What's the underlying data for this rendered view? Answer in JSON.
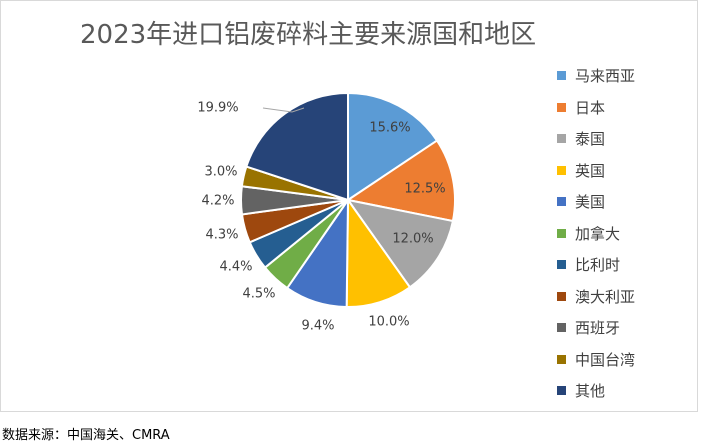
{
  "chart_data": {
    "type": "pie",
    "title": "2023年进口铝废碎料主要来源国和地区",
    "categories": [
      "马来西亚",
      "日本",
      "泰国",
      "英国",
      "美国",
      "加拿大",
      "比利时",
      "澳大利亚",
      "西班牙",
      "中国台湾",
      "其他"
    ],
    "values": [
      15.6,
      12.5,
      12.0,
      10.0,
      9.4,
      4.5,
      4.4,
      4.3,
      4.2,
      3.0,
      19.9
    ],
    "value_labels": [
      "15.6%",
      "12.5%",
      "12.0%",
      "10.0%",
      "9.4%",
      "4.5%",
      "4.4%",
      "4.3%",
      "4.2%",
      "3.0%",
      "19.9%"
    ],
    "colors": [
      "#5b9bd5",
      "#ed7d31",
      "#a5a5a5",
      "#ffc000",
      "#4472c4",
      "#70ad47",
      "#255e91",
      "#9e480e",
      "#636363",
      "#997300",
      "#264478"
    ],
    "legend_position": "right"
  },
  "source_note": "数据来源：中国海关、CMRA"
}
